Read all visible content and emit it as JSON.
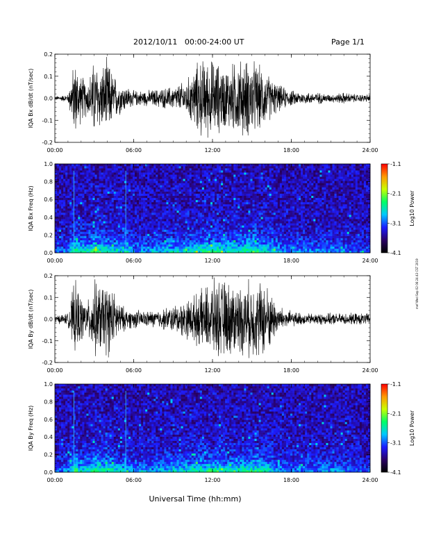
{
  "header": {
    "title": "2012/10/11   00:00-24:00 UT",
    "page": "Page 1/1"
  },
  "side_note": "mef Wed Sep 02 06:24:43 CST 2019",
  "xlabel": "Universal Time (hh:mm)",
  "colorbar": {
    "label": "Log10 Power",
    "ticks": [
      "-1.1",
      "-2.1",
      "-3.1",
      "-4.1"
    ],
    "colors": [
      "#000000",
      "#2a0066",
      "#1c1cff",
      "#00c8ff",
      "#00ff66",
      "#c8ff00",
      "#ff9900",
      "#ff0000"
    ]
  },
  "colors": {
    "trace": "#000000",
    "background": "#ffffff"
  },
  "chart_data": [
    {
      "type": "line",
      "ylabel": "IQA Bx dB/dt (nT/sec)",
      "xlim": [
        0,
        24
      ],
      "ylim": [
        -0.2,
        0.2
      ],
      "x_ticks": [
        "00:00",
        "06:00",
        "12:00",
        "18:00",
        "24:00"
      ],
      "y_ticks": [
        "0.2",
        "0.1",
        "0.0",
        "-0.1",
        "-0.2"
      ],
      "x_hours": [
        0,
        1,
        1.5,
        2,
        2.5,
        3,
        3.5,
        4,
        4.5,
        5,
        5.5,
        6,
        7,
        8,
        9,
        10,
        11,
        12,
        13,
        14,
        15,
        16,
        17,
        18,
        19,
        20,
        21,
        22,
        23,
        24
      ],
      "envelope": [
        0.01,
        0.02,
        0.2,
        0.12,
        0.09,
        0.2,
        0.16,
        0.2,
        0.12,
        0.08,
        0.06,
        0.04,
        0.04,
        0.05,
        0.06,
        0.09,
        0.2,
        0.2,
        0.16,
        0.2,
        0.2,
        0.14,
        0.07,
        0.04,
        0.03,
        0.03,
        0.02,
        0.03,
        0.02,
        0.02
      ]
    },
    {
      "type": "heatmap",
      "ylabel": "IQA Bx Freq (Hz)",
      "xlim": [
        0,
        24
      ],
      "ylim": [
        0,
        1.0
      ],
      "x_ticks": [
        "00:00",
        "06:00",
        "12:00",
        "18:00",
        "24:00"
      ],
      "y_ticks": [
        "1.0",
        "0.8",
        "0.6",
        "0.4",
        "0.2",
        "0.0"
      ],
      "zlim": [
        -4.1,
        -1.1
      ],
      "activity_hours": [
        0,
        1,
        1.5,
        2,
        2.5,
        3,
        3.5,
        4,
        4.5,
        5,
        5.5,
        6,
        7,
        8,
        9,
        10,
        11,
        12,
        13,
        14,
        15,
        16,
        17,
        18,
        19,
        20,
        21,
        22,
        23,
        24
      ],
      "activity": [
        0.2,
        0.25,
        0.7,
        0.55,
        0.5,
        0.7,
        0.6,
        0.65,
        0.5,
        0.45,
        0.55,
        0.3,
        0.35,
        0.4,
        0.45,
        0.5,
        0.6,
        0.6,
        0.55,
        0.6,
        0.65,
        0.55,
        0.4,
        0.3,
        0.3,
        0.3,
        0.35,
        0.3,
        0.2,
        0.2
      ]
    },
    {
      "type": "line",
      "ylabel": "IQA By dB/dt (nT/sec)",
      "xlim": [
        0,
        24
      ],
      "ylim": [
        -0.2,
        0.2
      ],
      "x_ticks": [
        "00:00",
        "06:00",
        "12:00",
        "18:00",
        "24:00"
      ],
      "y_ticks": [
        "0.2",
        "0.1",
        "0.0",
        "-0.1",
        "-0.2"
      ],
      "x_hours": [
        0,
        1,
        1.5,
        2,
        2.5,
        3,
        3.5,
        4,
        4.5,
        5,
        5.5,
        6,
        7,
        8,
        9,
        10,
        11,
        12,
        13,
        14,
        15,
        16,
        17,
        18,
        19,
        20,
        21,
        22,
        23,
        24
      ],
      "envelope": [
        0.02,
        0.03,
        0.2,
        0.12,
        0.09,
        0.2,
        0.18,
        0.2,
        0.14,
        0.08,
        0.05,
        0.05,
        0.04,
        0.05,
        0.07,
        0.1,
        0.14,
        0.2,
        0.2,
        0.18,
        0.2,
        0.2,
        0.07,
        0.04,
        0.03,
        0.03,
        0.03,
        0.03,
        0.03,
        0.03
      ]
    },
    {
      "type": "heatmap",
      "ylabel": "IQA By Freq (Hz)",
      "xlim": [
        0,
        24
      ],
      "ylim": [
        0,
        1.0
      ],
      "x_ticks": [
        "00:00",
        "06:00",
        "12:00",
        "18:00",
        "24:00"
      ],
      "y_ticks": [
        "1.0",
        "0.8",
        "0.6",
        "0.4",
        "0.2",
        "0.0"
      ],
      "zlim": [
        -4.1,
        -1.1
      ],
      "activity_hours": [
        0,
        1,
        1.5,
        2,
        2.5,
        3,
        3.5,
        4,
        4.5,
        5,
        5.5,
        6,
        7,
        8,
        9,
        10,
        11,
        12,
        13,
        14,
        15,
        16,
        17,
        18,
        19,
        20,
        21,
        22,
        23,
        24
      ],
      "activity": [
        0.25,
        0.3,
        0.7,
        0.55,
        0.5,
        0.7,
        0.6,
        0.65,
        0.55,
        0.45,
        0.55,
        0.35,
        0.35,
        0.4,
        0.45,
        0.5,
        0.6,
        0.6,
        0.55,
        0.6,
        0.65,
        0.55,
        0.4,
        0.3,
        0.3,
        0.3,
        0.35,
        0.3,
        0.2,
        0.2
      ]
    }
  ]
}
